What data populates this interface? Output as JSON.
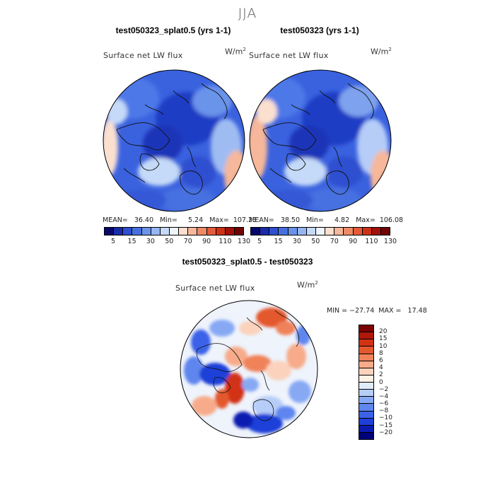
{
  "season": "JJA",
  "panels": [
    {
      "case_title": "test050323_splat0.5 (yrs 1-1)",
      "field": "Surface net LW flux",
      "units_base": "W/m",
      "units_exp": "2",
      "stats": "MEAN=   36.40   Min=     5.24   Max=  107.23"
    },
    {
      "case_title": "test050323 (yrs 1-1)",
      "field": "Surface net LW flux",
      "units_base": "W/m",
      "units_exp": "2",
      "stats": "MEAN=   38.50   Min=     4.82   Max=  106.08"
    }
  ],
  "diff_panel": {
    "title": "test050323_splat0.5 - test050323",
    "field": "Surface net LW flux",
    "units_base": "W/m",
    "units_exp": "2",
    "stats": "MIN = −27.74  MAX =   17.48"
  },
  "colorbar_main": {
    "colors": [
      "#08086b",
      "#1a2ba8",
      "#2f4fd0",
      "#4670e0",
      "#6b93ea",
      "#96b6f2",
      "#c5daf8",
      "#eef3fc",
      "#fbe0d0",
      "#f6b79a",
      "#ee8a66",
      "#e35c3a",
      "#cd3217",
      "#a2120a",
      "#6e0404"
    ],
    "ticks": [
      "5",
      "15",
      "30",
      "50",
      "70",
      "90",
      "110",
      "130"
    ]
  },
  "colorbar_diff": {
    "colors": [
      "#00007a",
      "#0a1bb0",
      "#1f3fd8",
      "#3b62e8",
      "#5e86ef",
      "#87a9f4",
      "#b6cdf8",
      "#e0ebfc",
      "#fdf0e6",
      "#fbd2bc",
      "#f7ab8a",
      "#f0825a",
      "#e4582e",
      "#d23312",
      "#b0170a",
      "#7a0303"
    ],
    "ticks": [
      "20",
      "15",
      "10",
      "8",
      "6",
      "4",
      "2",
      "0",
      "−2",
      "−4",
      "−6",
      "−8",
      "−10",
      "−15",
      "−20"
    ]
  }
}
